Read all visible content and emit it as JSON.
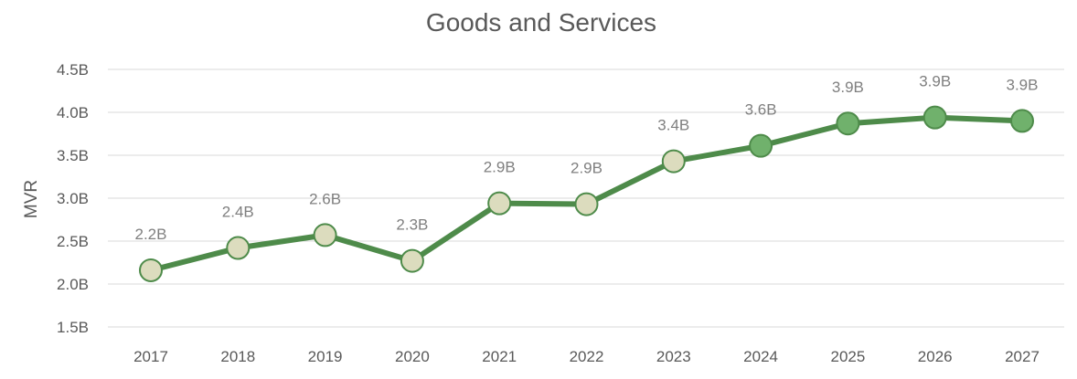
{
  "chart_data": {
    "type": "line",
    "title": "Goods and Services",
    "xlabel": "",
    "ylabel": "MVR",
    "ylim": [
      1.5,
      4.5
    ],
    "yticks": [
      {
        "value": 1.5,
        "label": "1.5B"
      },
      {
        "value": 2.0,
        "label": "2.0B"
      },
      {
        "value": 2.5,
        "label": "2.5B"
      },
      {
        "value": 3.0,
        "label": "3.0B"
      },
      {
        "value": 3.5,
        "label": "3.5B"
      },
      {
        "value": 4.0,
        "label": "4.0B"
      },
      {
        "value": 4.5,
        "label": "4.5B"
      }
    ],
    "grid": true,
    "legend": "none",
    "categories": [
      "2017",
      "2018",
      "2019",
      "2020",
      "2021",
      "2022",
      "2023",
      "2024",
      "2025",
      "2026",
      "2027"
    ],
    "series": [
      {
        "values": [
          2.16,
          2.42,
          2.57,
          2.27,
          2.94,
          2.93,
          3.43,
          3.61,
          3.87,
          3.94,
          3.9
        ],
        "labels": [
          "2.2B",
          "2.4B",
          "2.6B",
          "2.3B",
          "2.9B",
          "2.9B",
          "3.4B",
          "3.6B",
          "3.9B",
          "3.9B",
          "3.9B"
        ],
        "marker_fill": [
          "#dcdcbe",
          "#dcdcbe",
          "#dcdcbe",
          "#dcdcbe",
          "#dcdcbe",
          "#dcdcbe",
          "#dcdcbe",
          "#70b16c",
          "#70b16c",
          "#70b16c",
          "#70b16c"
        ]
      }
    ],
    "colors": {
      "line": "#4e8b4a",
      "marker_stroke": "#4e8b4a",
      "actual_marker": "#dcdcbe",
      "projection_marker": "#70b16c"
    }
  }
}
